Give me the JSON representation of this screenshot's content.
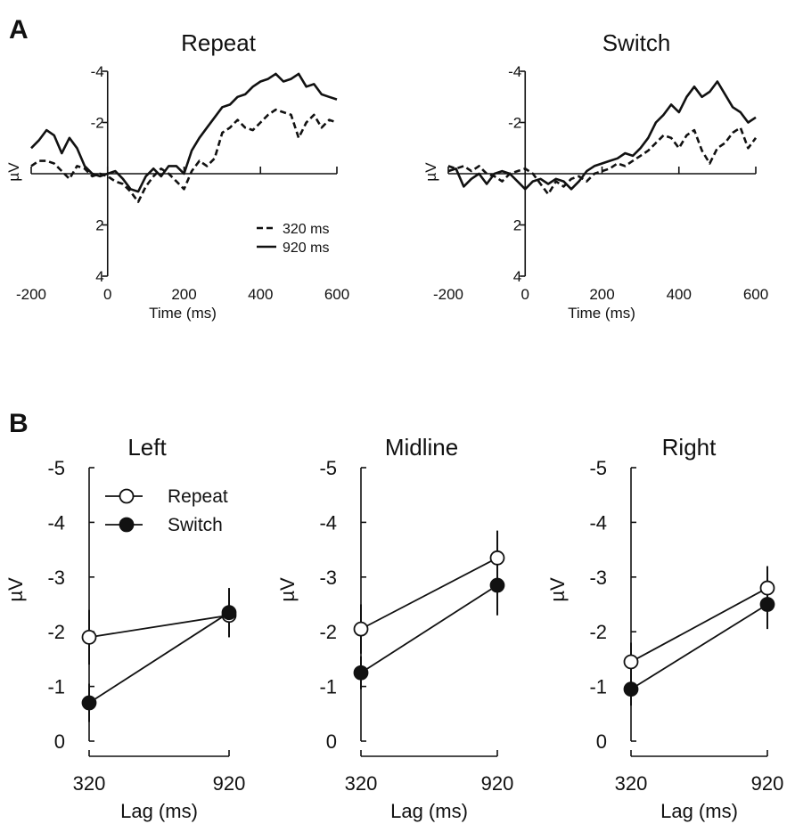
{
  "panel_labels": {
    "a": "A",
    "b": "B"
  },
  "chart_data": [
    {
      "type": "line",
      "title": "Repeat",
      "xlabel": "Time (ms)",
      "ylabel": "µV",
      "xlim": [
        -200,
        600
      ],
      "ylim": [
        4,
        -4
      ],
      "x_ticks": [
        "-200",
        "0",
        "200",
        "400",
        "600"
      ],
      "y_ticks": [
        "-4",
        "-2",
        "2",
        "4"
      ],
      "legend": [
        "320 ms",
        "920 ms"
      ],
      "x": [
        -200,
        -180,
        -160,
        -140,
        -120,
        -100,
        -80,
        -60,
        -40,
        -20,
        0,
        20,
        40,
        60,
        80,
        100,
        120,
        140,
        160,
        180,
        200,
        220,
        240,
        260,
        280,
        300,
        320,
        340,
        360,
        380,
        400,
        420,
        440,
        460,
        480,
        500,
        520,
        540,
        560,
        580,
        600
      ],
      "series": [
        {
          "name": "320 ms",
          "style": "dashed",
          "values": [
            -0.3,
            -0.5,
            -0.5,
            -0.4,
            -0.1,
            0.2,
            -0.3,
            -0.2,
            0.1,
            0.0,
            0.1,
            0.3,
            0.4,
            0.7,
            1.1,
            0.5,
            0.1,
            -0.2,
            0.0,
            0.3,
            0.6,
            -0.1,
            -0.5,
            -0.3,
            -0.6,
            -1.6,
            -1.8,
            -2.1,
            -1.8,
            -1.7,
            -2.0,
            -2.3,
            -2.5,
            -2.4,
            -2.3,
            -1.4,
            -2.0,
            -2.3,
            -1.8,
            -2.1,
            -2.0
          ]
        },
        {
          "name": "920 ms",
          "style": "solid",
          "values": [
            -1.0,
            -1.3,
            -1.7,
            -1.5,
            -0.8,
            -1.4,
            -1.0,
            -0.3,
            0.0,
            0.1,
            0.0,
            -0.1,
            0.2,
            0.6,
            0.7,
            0.1,
            -0.2,
            0.1,
            -0.3,
            -0.3,
            0.0,
            -0.9,
            -1.4,
            -1.8,
            -2.2,
            -2.6,
            -2.7,
            -3.0,
            -3.1,
            -3.4,
            -3.6,
            -3.7,
            -3.9,
            -3.6,
            -3.7,
            -3.9,
            -3.4,
            -3.5,
            -3.1,
            -3.0,
            -2.9
          ]
        }
      ]
    },
    {
      "type": "line",
      "title": "Switch",
      "xlabel": "Time (ms)",
      "ylabel": "µV",
      "xlim": [
        -200,
        600
      ],
      "ylim": [
        4,
        -4
      ],
      "x_ticks": [
        "-200",
        "0",
        "200",
        "400",
        "600"
      ],
      "y_ticks": [
        "-4",
        "-2",
        "2",
        "4"
      ],
      "x": [
        -200,
        -180,
        -160,
        -140,
        -120,
        -100,
        -80,
        -60,
        -40,
        -20,
        0,
        20,
        40,
        60,
        80,
        100,
        120,
        140,
        160,
        180,
        200,
        220,
        240,
        260,
        280,
        300,
        320,
        340,
        360,
        380,
        400,
        420,
        440,
        460,
        480,
        500,
        520,
        540,
        560,
        580,
        600
      ],
      "series": [
        {
          "name": "320 ms",
          "style": "dashed",
          "values": [
            -0.3,
            -0.2,
            -0.3,
            -0.1,
            -0.3,
            0.0,
            0.1,
            0.3,
            0.0,
            -0.1,
            -0.2,
            0.0,
            0.4,
            0.8,
            0.3,
            0.5,
            0.2,
            0.1,
            0.3,
            0.0,
            -0.1,
            -0.2,
            -0.4,
            -0.3,
            -0.5,
            -0.7,
            -0.9,
            -1.2,
            -1.5,
            -1.4,
            -1.0,
            -1.5,
            -1.7,
            -0.9,
            -0.4,
            -1.0,
            -1.2,
            -1.6,
            -1.8,
            -1.0,
            -1.4
          ]
        },
        {
          "name": "920 ms",
          "style": "solid",
          "values": [
            -0.1,
            -0.2,
            0.5,
            0.2,
            0.0,
            0.4,
            0.0,
            -0.1,
            0.0,
            0.3,
            0.6,
            0.3,
            0.2,
            0.4,
            0.2,
            0.3,
            0.6,
            0.3,
            -0.1,
            -0.3,
            -0.4,
            -0.5,
            -0.6,
            -0.8,
            -0.7,
            -1.0,
            -1.4,
            -2.0,
            -2.3,
            -2.7,
            -2.4,
            -3.0,
            -3.4,
            -3.0,
            -3.2,
            -3.6,
            -3.1,
            -2.6,
            -2.4,
            -2.0,
            -2.2
          ]
        }
      ]
    },
    {
      "type": "line",
      "title": "Left",
      "xlabel": "Lag (ms)",
      "ylabel": "µV",
      "categories": [
        "320",
        "920"
      ],
      "ylim": [
        0,
        -5
      ],
      "y_ticks": [
        "-5",
        "-4",
        "-3",
        "-2",
        "-1",
        "0"
      ],
      "legend": [
        "Repeat",
        "Switch"
      ],
      "series": [
        {
          "name": "Repeat",
          "marker": "open",
          "values": [
            -1.9,
            -2.3
          ],
          "errors": [
            0.5,
            0.4
          ]
        },
        {
          "name": "Switch",
          "marker": "filled",
          "values": [
            -0.7,
            -2.35
          ],
          "errors": [
            0.35,
            0.45
          ]
        }
      ]
    },
    {
      "type": "line",
      "title": "Midline",
      "xlabel": "Lag (ms)",
      "ylabel": "µV",
      "categories": [
        "320",
        "920"
      ],
      "ylim": [
        0,
        -5
      ],
      "y_ticks": [
        "-5",
        "-4",
        "-3",
        "-2",
        "-1",
        "0"
      ],
      "series": [
        {
          "name": "Repeat",
          "marker": "open",
          "values": [
            -2.05,
            -3.35
          ],
          "errors": [
            0.45,
            0.5
          ]
        },
        {
          "name": "Switch",
          "marker": "filled",
          "values": [
            -1.25,
            -2.85
          ],
          "errors": [
            0.3,
            0.55
          ]
        }
      ]
    },
    {
      "type": "line",
      "title": "Right",
      "xlabel": "Lag (ms)",
      "ylabel": "µV",
      "categories": [
        "320",
        "920"
      ],
      "ylim": [
        0,
        -5
      ],
      "y_ticks": [
        "-5",
        "-4",
        "-3",
        "-2",
        "-1",
        "0"
      ],
      "series": [
        {
          "name": "Repeat",
          "marker": "open",
          "values": [
            -1.45,
            -2.8
          ],
          "errors": [
            0.35,
            0.4
          ]
        },
        {
          "name": "Switch",
          "marker": "filled",
          "values": [
            -0.95,
            -2.5
          ],
          "errors": [
            0.3,
            0.45
          ]
        }
      ]
    }
  ]
}
